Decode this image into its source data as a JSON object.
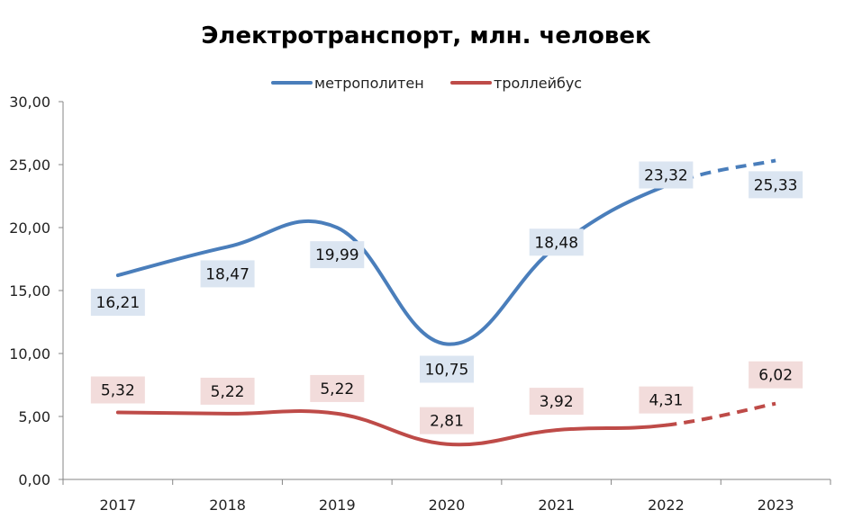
{
  "chart_data": {
    "type": "line",
    "title": "Электротранспорт, млн. человек",
    "categories": [
      "2017",
      "2018",
      "2019",
      "2020",
      "2021",
      "2022",
      "2023"
    ],
    "ylim": [
      0,
      30
    ],
    "yticks": [
      "0,00",
      "5,00",
      "10,00",
      "15,00",
      "20,00",
      "25,00",
      "30,00"
    ],
    "grid": false,
    "legend_position": "top-center",
    "smooth": true,
    "forecast_from_index": 5,
    "series": [
      {
        "name": "метрополитен",
        "color": "#4a7ebb",
        "label_bg": "#dbe5f1",
        "values": [
          16.21,
          18.47,
          19.99,
          10.75,
          18.48,
          23.32,
          25.33
        ],
        "labels": [
          "16,21",
          "18,47",
          "19,99",
          "10,75",
          "18,48",
          "23,32",
          "25,33"
        ]
      },
      {
        "name": "троллейбус",
        "color": "#be4b48",
        "label_bg": "#f2dcdb",
        "values": [
          5.32,
          5.22,
          5.22,
          2.81,
          3.92,
          4.31,
          6.02
        ],
        "labels": [
          "5,32",
          "5,22",
          "5,22",
          "2,81",
          "3,92",
          "4,31",
          "6,02"
        ]
      }
    ]
  }
}
